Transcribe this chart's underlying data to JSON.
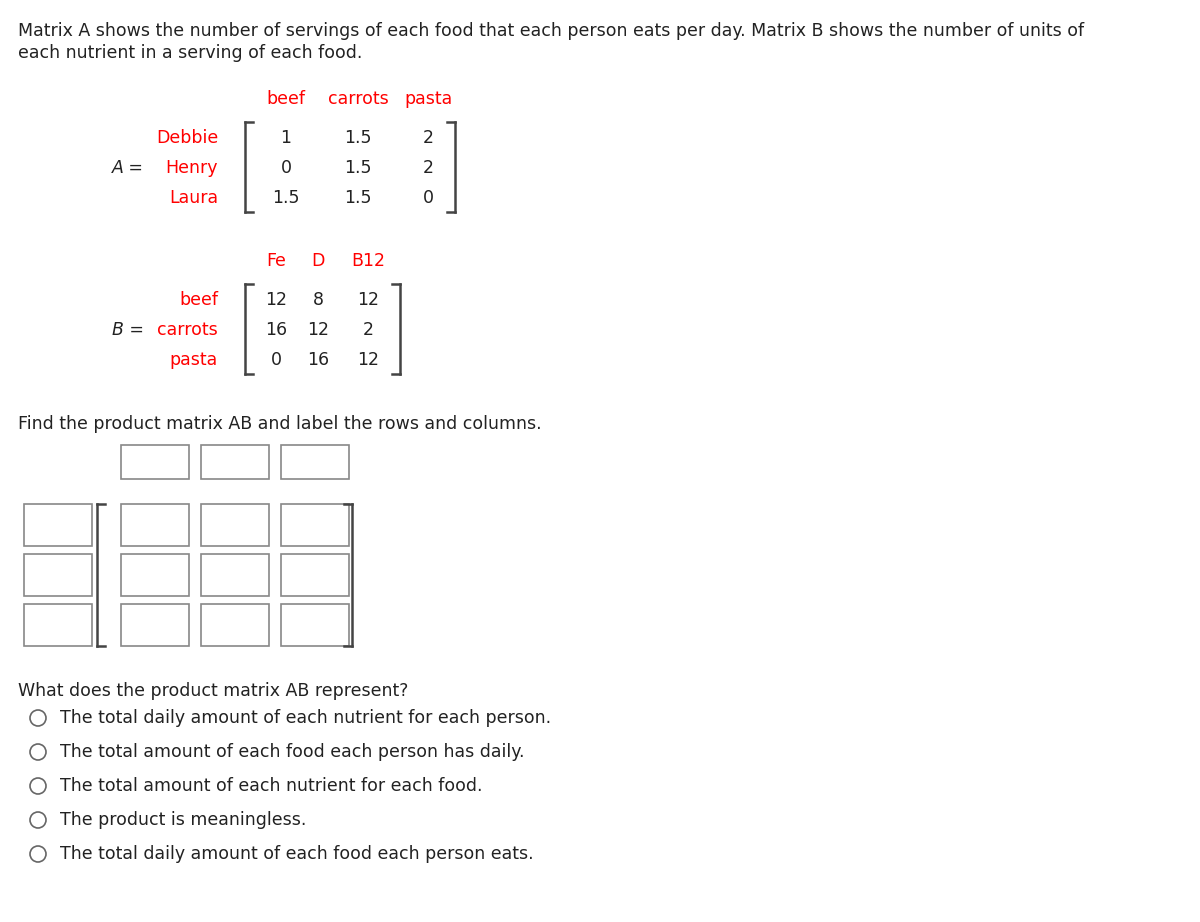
{
  "description_line1": "Matrix A shows the number of servings of each food that each person eats per day. Matrix B shows the number of units of",
  "description_line2": "each nutrient in a serving of each food.",
  "A_col_labels": [
    "beef",
    "carrots",
    "pasta"
  ],
  "A_row_labels": [
    "Debbie",
    "Henry",
    "Laura"
  ],
  "A_values": [
    [
      1,
      1.5,
      2
    ],
    [
      0,
      1.5,
      2
    ],
    [
      1.5,
      1.5,
      0
    ]
  ],
  "B_col_labels": [
    "Fe",
    "D",
    "B12"
  ],
  "B_row_labels": [
    "beef",
    "carrots",
    "pasta"
  ],
  "B_values": [
    [
      12,
      8,
      12
    ],
    [
      16,
      12,
      2
    ],
    [
      0,
      16,
      12
    ]
  ],
  "find_text": "Find the product matrix AB and label the rows and columns.",
  "question_text": "What does the product matrix AB represent?",
  "options": [
    "The total daily amount of each nutrient for each person.",
    "The total amount of each food each person has daily.",
    "The total amount of each nutrient for each food.",
    "The product is meaningless.",
    "The total daily amount of each food each person eats."
  ],
  "red_color": "#FF0000",
  "black_color": "#222222",
  "dark_gray": "#444444",
  "bg_color": "#FFFFFF",
  "body_font_size": 12.5,
  "matrix_font_size": 12.5,
  "label_font_size": 12.5
}
